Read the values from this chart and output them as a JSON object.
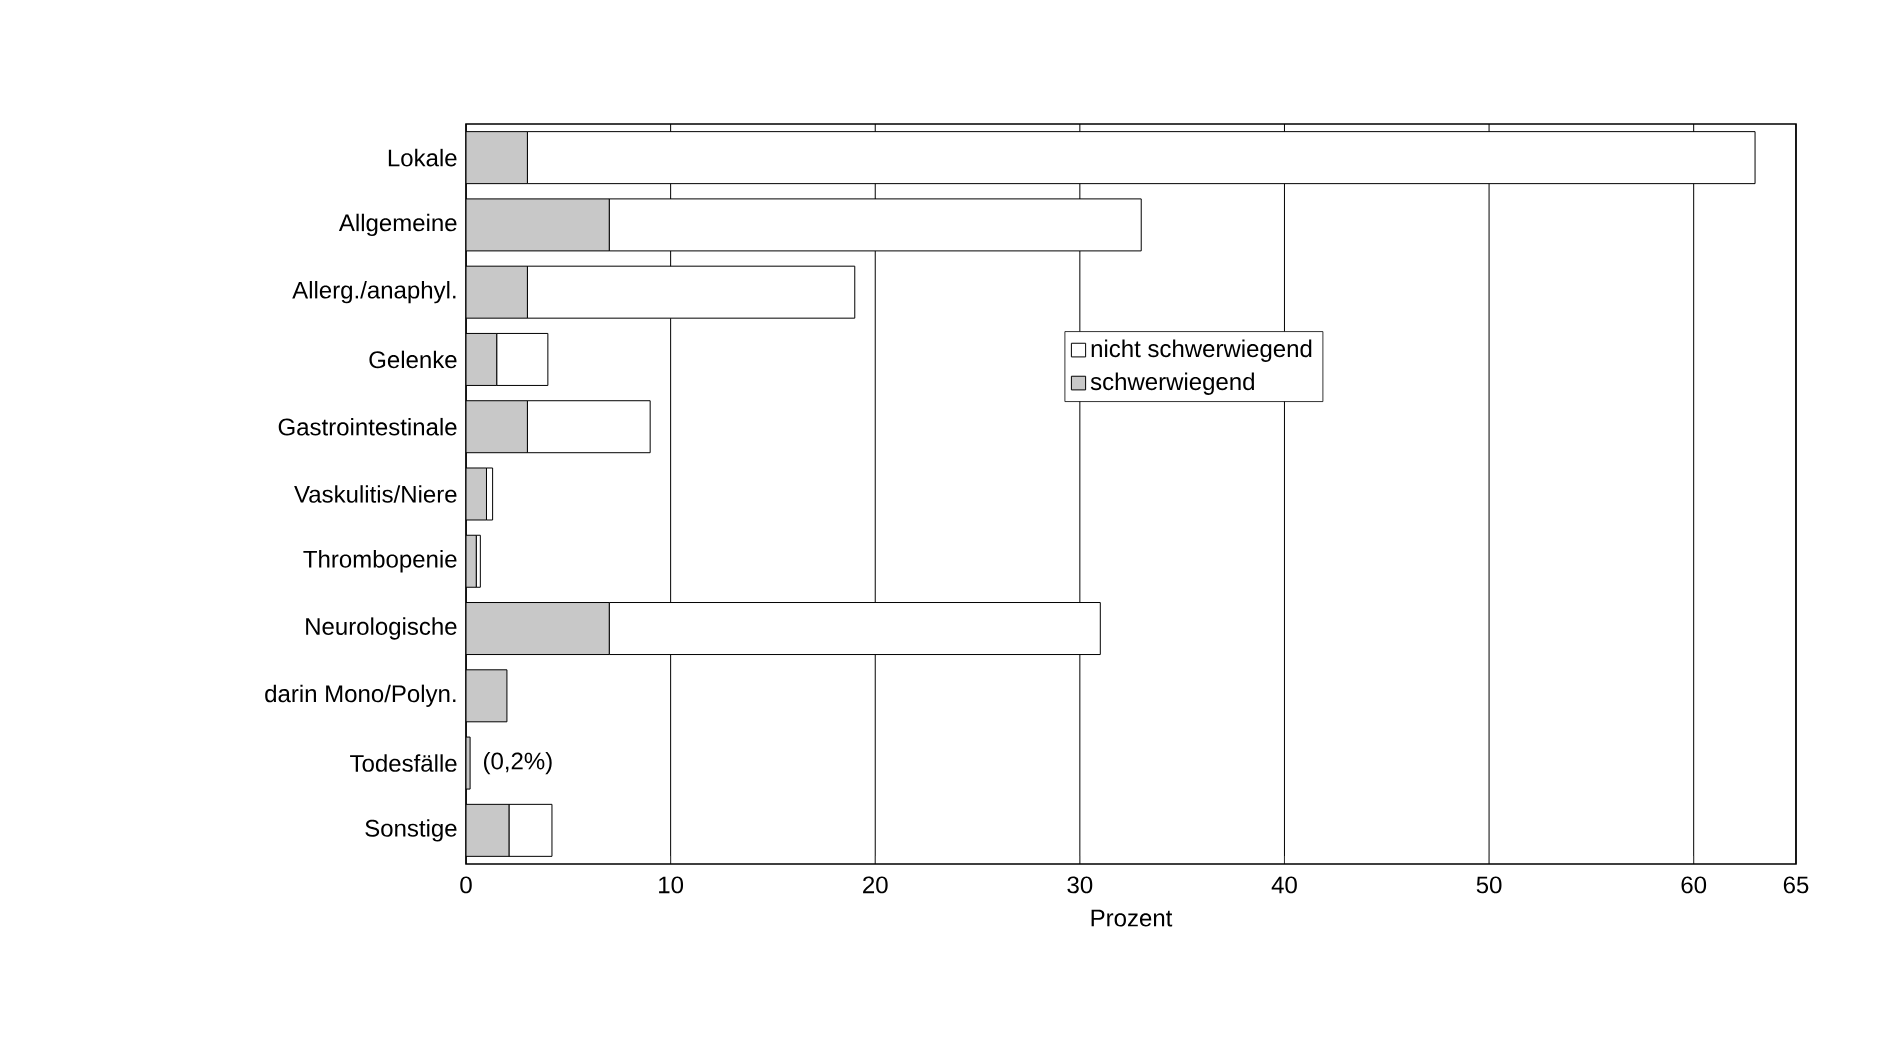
{
  "chart_data": {
    "type": "bar",
    "orientation": "horizontal",
    "stacked": true,
    "xlabel": "Prozent",
    "categories": [
      "Lokale",
      "Allgemeine",
      "Allerg./anaphyl.",
      "Gelenke",
      "Gastrointestinale",
      "Vaskulitis/Niere",
      "Thrombopenie",
      "Neurologische",
      "darin Mono/Polyn.",
      "Todesfälle",
      "Sonstige"
    ],
    "series": [
      {
        "name": "schwerwiegend",
        "color": "#c8c8c8",
        "values": [
          3,
          7,
          3,
          1.5,
          3,
          1,
          0.5,
          7,
          2,
          0.2,
          2.1
        ]
      },
      {
        "name": "nicht schwerwiegend",
        "color": "#ffffff",
        "values": [
          60,
          26,
          16,
          2.5,
          6,
          0.3,
          0.2,
          24,
          0,
          0,
          2.1
        ]
      }
    ],
    "xlim": [
      0,
      65
    ],
    "xticks": [
      0,
      10,
      20,
      30,
      40,
      50,
      60,
      65
    ],
    "grid": "x",
    "legend": "right",
    "annotations": [
      {
        "text": "(0,2%)",
        "x": 0.2,
        "y": "Todesfälle"
      }
    ]
  }
}
